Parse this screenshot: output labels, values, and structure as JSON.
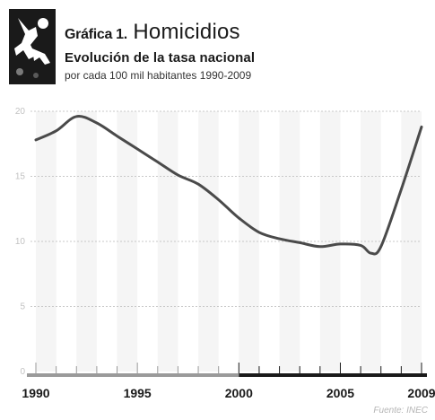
{
  "header": {
    "icon": "homicide-figure-icon",
    "title_prefix": "Gráfica 1.",
    "title_main": "Homicidios",
    "subtitle": "Evolución de la tasa nacional",
    "caption": "por cada 100 mil habitantes 1990-2009"
  },
  "source": "Fuente: INEC",
  "colors": {
    "line": "#4a4a4a",
    "grid": "#c8c8c8",
    "band": "#ededed",
    "axis_light": "#9a9a9a",
    "axis_dark": "#1a1a1a",
    "icon_bg": "#1a1a1a"
  },
  "chart_data": {
    "type": "line",
    "title": "Homicidios",
    "xlabel": "",
    "ylabel": "",
    "xlim": [
      1990,
      2009
    ],
    "ylim": [
      0,
      20
    ],
    "yticks": [
      0,
      5,
      10,
      15,
      20
    ],
    "ytick_labels": [
      "0",
      "5",
      "10",
      "15",
      "20"
    ],
    "xtick_labels": [
      "1990",
      "1995",
      "2000",
      "2005",
      "2009"
    ],
    "x": [
      1990,
      1991,
      1992,
      1993,
      1994,
      1995,
      1996,
      1997,
      1998,
      1999,
      2000,
      2001,
      2002,
      2003,
      2004,
      2005,
      2006,
      2006.5,
      2007,
      2008,
      2009
    ],
    "values": [
      17.8,
      18.5,
      19.6,
      19.1,
      18.1,
      17.1,
      16.1,
      15.1,
      14.4,
      13.2,
      11.8,
      10.7,
      10.2,
      9.9,
      9.6,
      9.8,
      9.7,
      9.1,
      9.6,
      14.0,
      18.8
    ],
    "grid": true
  }
}
